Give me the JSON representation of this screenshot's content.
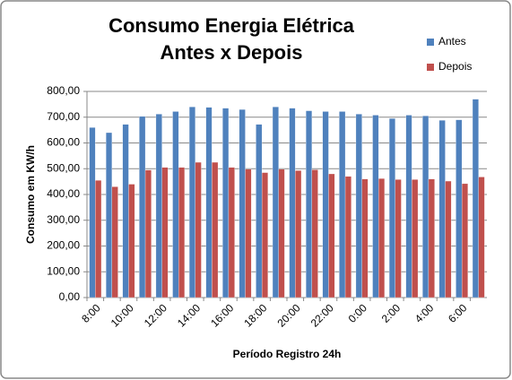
{
  "chart_data": {
    "type": "bar",
    "title": [
      "Consumo Energia Elétrica",
      "Antes x Depois"
    ],
    "x_label": "Período Registro 24h",
    "y_label": "Consumo em KW/h",
    "categories": [
      "8:00",
      null,
      "10:00",
      null,
      "12:00",
      null,
      "14:00",
      null,
      "16:00",
      null,
      "18:00",
      null,
      "20:00",
      null,
      "22:00",
      null,
      "0:00",
      null,
      "2:00",
      null,
      "4:00",
      null,
      "6:00",
      null
    ],
    "series": [
      {
        "name": "Antes",
        "color": "#4f81bd",
        "values": [
          660,
          640,
          672,
          703,
          712,
          722,
          740,
          738,
          735,
          730,
          672,
          740,
          735,
          725,
          722,
          722,
          712,
          708,
          695,
          708,
          705,
          688,
          690,
          770
        ]
      },
      {
        "name": "Depois",
        "color": "#c0504d",
        "values": [
          455,
          430,
          440,
          495,
          505,
          505,
          525,
          525,
          505,
          498,
          485,
          498,
          493,
          496,
          480,
          470,
          460,
          462,
          458,
          458,
          460,
          452,
          442,
          468
        ]
      }
    ],
    "ylim": [
      0,
      800
    ],
    "yticks": [
      {
        "value": 0,
        "label": "0,00"
      },
      {
        "value": 100,
        "label": "100,00"
      },
      {
        "value": 200,
        "label": "200,00"
      },
      {
        "value": 300,
        "label": "300,00"
      },
      {
        "value": 400,
        "label": "400,00"
      },
      {
        "value": 500,
        "label": "500,00"
      },
      {
        "value": 600,
        "label": "600,00"
      },
      {
        "value": 700,
        "label": "700,00"
      },
      {
        "value": 800,
        "label": "800,00"
      }
    ],
    "grid": true,
    "legend": "right"
  }
}
